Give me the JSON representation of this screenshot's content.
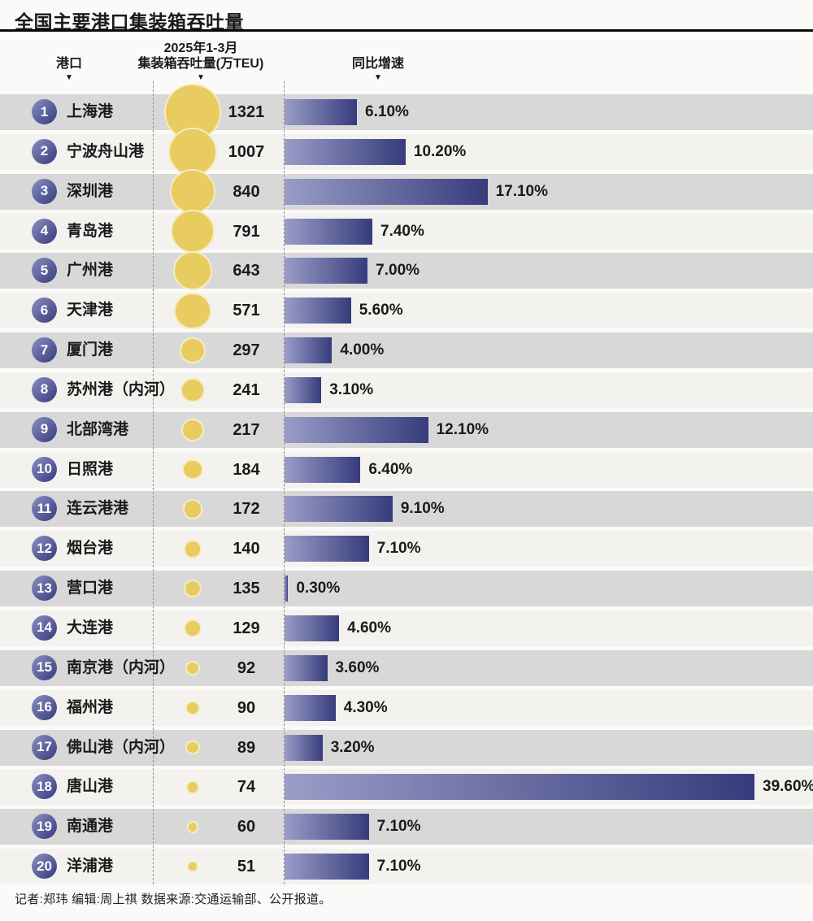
{
  "title": "全国主要港口集装箱吞吐量",
  "header": {
    "port_label": "港口",
    "throughput_label_line1": "2025年1-3月",
    "throughput_label_line2": "集装箱吞吐量(万TEU)",
    "growth_label": "同比增速",
    "arrow_icon": "▼"
  },
  "credits": "记者:郑玮  编辑:周上祺  数据来源:交通运输部、公开报道。",
  "colors": {
    "page_bg": "#fbfaf8",
    "row_odd": "#d8d8d8",
    "row_even": "#f3f2ef",
    "bubble_fill": "#e9cc5f",
    "bubble_border": "#f5ecc4",
    "bar_gradient_start": "#9a9dc7",
    "bar_gradient_end": "#363c7c",
    "rank_gradient_start": "#8b8fc2",
    "rank_gradient_end": "#353a7c",
    "text": "#1a1a1a"
  },
  "chart_data": {
    "type": "bar",
    "title": "全国主要港口集装箱吞吐量",
    "orientation": "horizontal",
    "categories": [
      "上海港",
      "宁波舟山港",
      "深圳港",
      "青岛港",
      "广州港",
      "天津港",
      "厦门港",
      "苏州港（内河）",
      "北部湾港",
      "日照港",
      "连云港港",
      "烟台港",
      "营口港",
      "大连港",
      "南京港（内河）",
      "福州港",
      "佛山港（内河）",
      "唐山港",
      "南通港",
      "洋浦港"
    ],
    "ranks": [
      1,
      2,
      3,
      4,
      5,
      6,
      7,
      8,
      9,
      10,
      11,
      12,
      13,
      14,
      15,
      16,
      17,
      18,
      19,
      20
    ],
    "series": [
      {
        "name": "2025年1-3月集装箱吞吐量(万TEU)",
        "type": "bubble",
        "values": [
          1321,
          1007,
          840,
          791,
          643,
          571,
          297,
          241,
          217,
          184,
          172,
          140,
          135,
          129,
          92,
          90,
          89,
          74,
          60,
          51
        ]
      },
      {
        "name": "同比增速",
        "type": "bar",
        "values": [
          6.1,
          10.2,
          17.1,
          7.4,
          7.0,
          5.6,
          4.0,
          3.1,
          12.1,
          6.4,
          9.1,
          7.1,
          0.3,
          4.6,
          3.6,
          4.3,
          3.2,
          39.6,
          7.1,
          7.1
        ],
        "labels": [
          "6.10%",
          "10.20%",
          "17.10%",
          "7.40%",
          "7.00%",
          "5.60%",
          "4.00%",
          "3.10%",
          "12.10%",
          "6.40%",
          "9.10%",
          "7.10%",
          "0.30%",
          "4.60%",
          "3.60%",
          "4.30%",
          "3.20%",
          "39.60%",
          "7.10%",
          "7.10%"
        ]
      }
    ],
    "growth_axis_range": [
      0,
      39.6
    ],
    "grid": false,
    "legend": false
  }
}
